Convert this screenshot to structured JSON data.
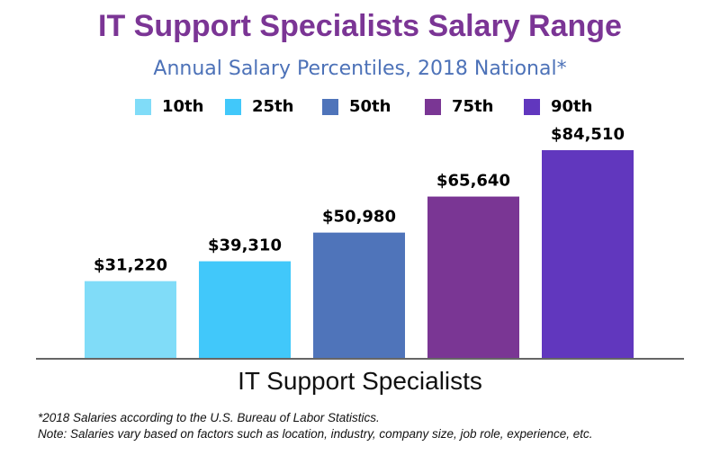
{
  "chart_data": {
    "type": "bar",
    "title": "IT Support Specialists Salary Range",
    "subtitle": "Annual Salary Percentiles, 2018 National*",
    "xlabel": "IT Support Specialists",
    "ylabel": "",
    "categories": [
      "10th",
      "25th",
      "50th",
      "75th",
      "90th"
    ],
    "values": [
      31220,
      39310,
      50980,
      65640,
      84510
    ],
    "data_labels": [
      "$31,220",
      "$39,310",
      "$50,980",
      "$65,640",
      "$84,510"
    ],
    "colors": [
      "#80dcf8",
      "#41c8fa",
      "#4f74ba",
      "#7a3694",
      "#6137be"
    ],
    "ylim": [
      0,
      90000
    ],
    "grid": false,
    "legend": "top"
  },
  "footnotes": [
    "*2018 Salaries according to the U.S. Bureau of Labor Statistics.",
    "Note: Salaries vary based on factors such as location, industry, company size, job role, experience, etc."
  ]
}
